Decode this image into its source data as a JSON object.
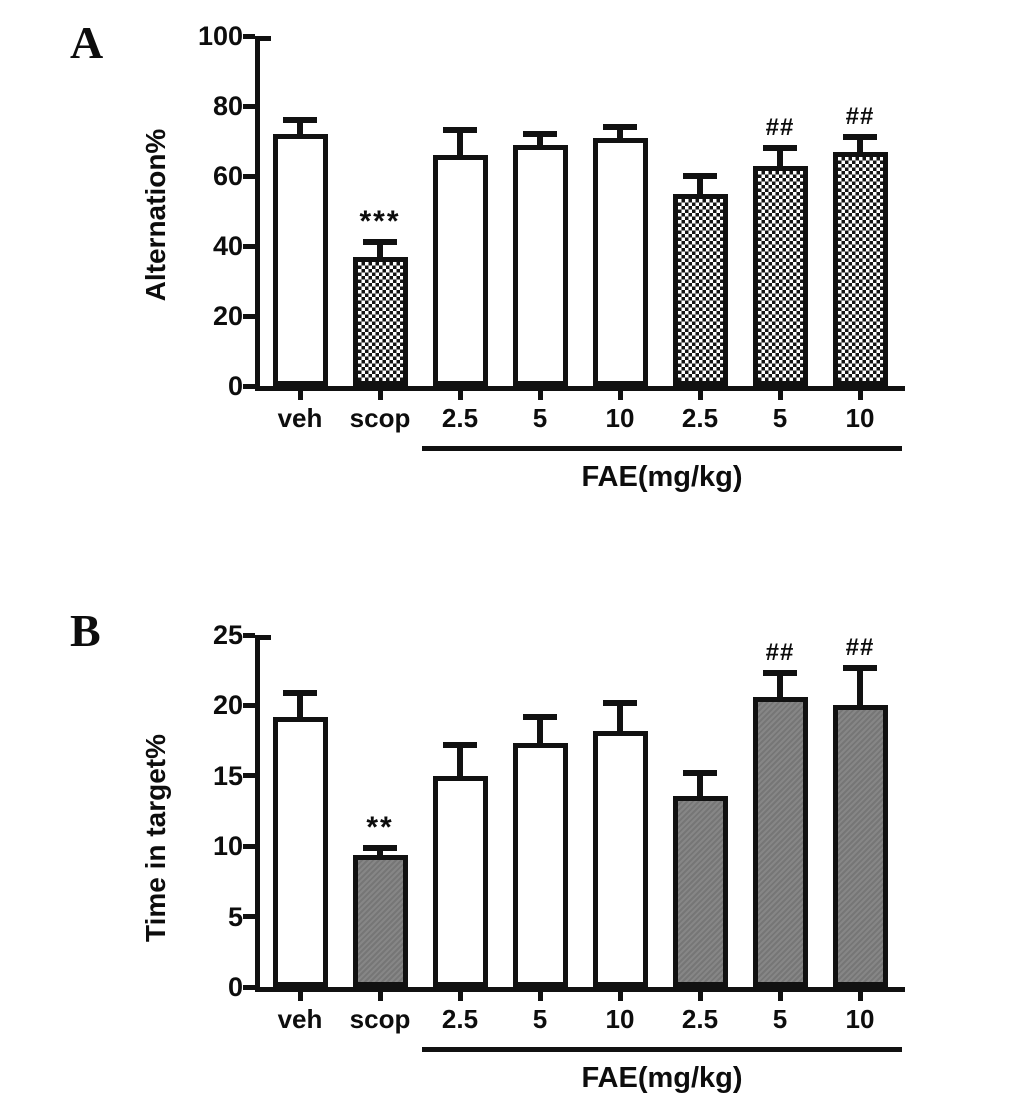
{
  "colors": {
    "ink": "#111111",
    "bar_gray": "#7d7d7d",
    "checker_dark": "#141414",
    "background": "#ffffff"
  },
  "chart_data": [
    {
      "type": "bar",
      "panel_label": "A",
      "title": "",
      "xlabel": "",
      "ylabel": "Alternation%",
      "ylim": [
        0,
        100
      ],
      "yticks": [
        0,
        20,
        40,
        60,
        80,
        100
      ],
      "grid": false,
      "legend": "none",
      "categories": [
        "veh",
        "scop",
        "2.5",
        "5",
        "10",
        "2.5",
        "5",
        "10"
      ],
      "values": [
        72,
        37,
        66,
        69,
        71,
        55,
        63,
        67
      ],
      "errors": [
        5,
        5,
        8,
        4,
        4,
        6,
        6,
        5
      ],
      "fills": [
        "white",
        "checker",
        "white",
        "white",
        "white",
        "checker",
        "checker",
        "checker"
      ],
      "annotations": [
        "",
        "***",
        "",
        "",
        "",
        "",
        "##",
        "##"
      ],
      "group_label": "FAE(mg/kg)",
      "group_span": {
        "start_index": 2,
        "end_index": 7
      }
    },
    {
      "type": "bar",
      "panel_label": "B",
      "title": "",
      "xlabel": "",
      "ylabel": "Time in target%",
      "ylim": [
        0,
        25
      ],
      "yticks": [
        0,
        5,
        10,
        15,
        20,
        25
      ],
      "grid": false,
      "legend": "none",
      "categories": [
        "veh",
        "scop",
        "2.5",
        "5",
        "10",
        "2.5",
        "5",
        "10"
      ],
      "values": [
        19.2,
        9.4,
        15.0,
        17.3,
        18.2,
        13.6,
        20.6,
        20.0
      ],
      "errors": [
        1.9,
        0.7,
        2.4,
        2.1,
        2.2,
        1.8,
        1.9,
        2.9
      ],
      "fills": [
        "white",
        "gray",
        "white",
        "white",
        "white",
        "gray",
        "gray",
        "gray"
      ],
      "annotations": [
        "",
        "**",
        "",
        "",
        "",
        "",
        "##",
        "##"
      ],
      "group_label": "FAE(mg/kg)",
      "group_span": {
        "start_index": 2,
        "end_index": 7
      }
    }
  ]
}
